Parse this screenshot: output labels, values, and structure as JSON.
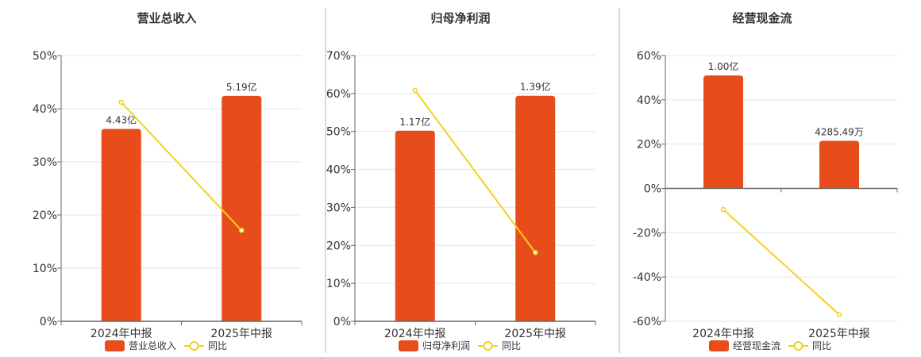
{
  "colors": {
    "bar": "#e84c1a",
    "line": "#f2d21b",
    "grid": "#e6e6ec",
    "axis": "#666666",
    "divider": "#b0b0b0"
  },
  "chart_data": [
    {
      "type": "bar",
      "title": "营业总收入",
      "categories": [
        "2024年中报",
        "2025年中报"
      ],
      "series": [
        {
          "name": "营业总收入",
          "type": "bar",
          "values": [
            36.2,
            42.4
          ],
          "labels": [
            "4.43亿",
            "5.19亿"
          ]
        },
        {
          "name": "同比",
          "type": "line",
          "values": [
            41.2,
            17.1
          ]
        }
      ],
      "ylim": [
        0,
        50
      ],
      "yticks": [
        0,
        10,
        20,
        30,
        40,
        50
      ],
      "ytick_labels": [
        "0%",
        "10%",
        "20%",
        "30%",
        "40%",
        "50%"
      ],
      "grid": true,
      "legend": "bottom"
    },
    {
      "type": "bar",
      "title": "归母净利润",
      "categories": [
        "2024年中报",
        "2025年中报"
      ],
      "series": [
        {
          "name": "归母净利润",
          "type": "bar",
          "values": [
            50.2,
            59.4
          ],
          "labels": [
            "1.17亿",
            "1.39亿"
          ]
        },
        {
          "name": "同比",
          "type": "line",
          "values": [
            60.8,
            18.1
          ]
        }
      ],
      "ylim": [
        0,
        70
      ],
      "yticks": [
        0,
        10,
        20,
        30,
        40,
        50,
        60,
        70
      ],
      "ytick_labels": [
        "0%",
        "10%",
        "20%",
        "30%",
        "40%",
        "50%",
        "60%",
        "70%"
      ],
      "grid": true,
      "legend": "bottom"
    },
    {
      "type": "bar",
      "title": "经营现金流",
      "categories": [
        "2024年中报",
        "2025年中报"
      ],
      "series": [
        {
          "name": "经营现金流",
          "type": "bar",
          "values": [
            51,
            21.5
          ],
          "labels": [
            "1.00亿",
            "4285.49万"
          ]
        },
        {
          "name": "同比",
          "type": "line",
          "values": [
            -9.5,
            -57
          ]
        }
      ],
      "ylim": [
        -60,
        60
      ],
      "yticks": [
        -60,
        -40,
        -20,
        0,
        20,
        40,
        60
      ],
      "ytick_labels": [
        "-60%",
        "-40%",
        "-20%",
        "0%",
        "20%",
        "40%",
        "60%"
      ],
      "grid": true,
      "legend": "bottom"
    }
  ]
}
